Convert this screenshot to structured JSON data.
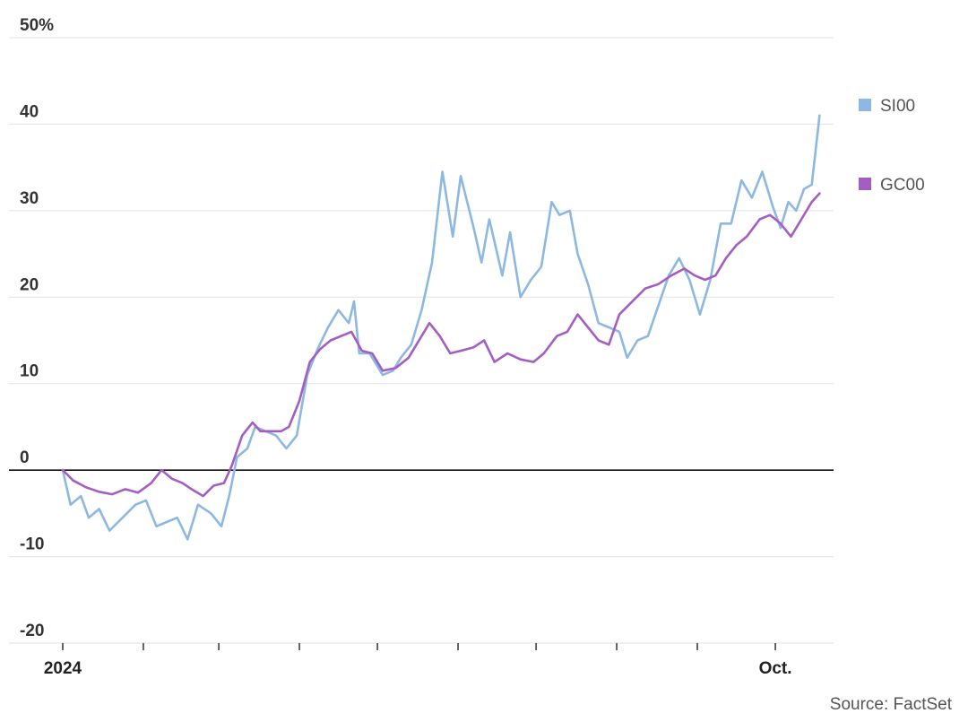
{
  "chart_data": {
    "type": "line",
    "y_unit_label": "50%",
    "ylim": [
      -20,
      50
    ],
    "yticks": [
      -20,
      -10,
      0,
      10,
      20,
      30,
      40,
      50
    ],
    "ytick_labels": [
      "-20",
      "-10",
      "0",
      "10",
      "20",
      "30",
      "40",
      "50%"
    ],
    "x_range": [
      "2024-01-01",
      "2024-11-01"
    ],
    "xtick_labels": [
      {
        "date": "2024-01-01",
        "label": "2024"
      },
      {
        "date": "2024-10-01",
        "label": "Oct."
      }
    ],
    "xtick_marks": [
      "2024-01-01",
      "2024-02-01",
      "2024-03-01",
      "2024-04-01",
      "2024-05-01",
      "2024-06-01",
      "2024-07-01",
      "2024-08-01",
      "2024-09-01",
      "2024-10-01"
    ],
    "grid": true,
    "legend_position": "right",
    "series": [
      {
        "name": "SI00",
        "color": "#8db8e2",
        "points": [
          [
            "2024-01-01",
            0
          ],
          [
            "2024-01-04",
            -4
          ],
          [
            "2024-01-08",
            -3
          ],
          [
            "2024-01-11",
            -5.5
          ],
          [
            "2024-01-15",
            -4.5
          ],
          [
            "2024-01-19",
            -7
          ],
          [
            "2024-01-24",
            -5.5
          ],
          [
            "2024-01-29",
            -4
          ],
          [
            "2024-02-02",
            -3.5
          ],
          [
            "2024-02-06",
            -6.5
          ],
          [
            "2024-02-10",
            -6
          ],
          [
            "2024-02-14",
            -5.5
          ],
          [
            "2024-02-18",
            -8
          ],
          [
            "2024-02-22",
            -4
          ],
          [
            "2024-02-27",
            -5
          ],
          [
            "2024-03-02",
            -6.5
          ],
          [
            "2024-03-05",
            -3
          ],
          [
            "2024-03-08",
            1.5
          ],
          [
            "2024-03-12",
            2.5
          ],
          [
            "2024-03-15",
            5
          ],
          [
            "2024-03-19",
            4.5
          ],
          [
            "2024-03-23",
            4
          ],
          [
            "2024-03-27",
            2.5
          ],
          [
            "2024-03-31",
            4
          ],
          [
            "2024-04-04",
            11
          ],
          [
            "2024-04-08",
            14
          ],
          [
            "2024-04-12",
            16.5
          ],
          [
            "2024-04-16",
            18.5
          ],
          [
            "2024-04-20",
            17
          ],
          [
            "2024-04-22",
            19.5
          ],
          [
            "2024-04-24",
            13.5
          ],
          [
            "2024-04-28",
            13.5
          ],
          [
            "2024-05-03",
            11
          ],
          [
            "2024-05-07",
            11.5
          ],
          [
            "2024-05-10",
            13
          ],
          [
            "2024-05-14",
            14.5
          ],
          [
            "2024-05-18",
            18.5
          ],
          [
            "2024-05-22",
            24
          ],
          [
            "2024-05-26",
            34.5
          ],
          [
            "2024-05-30",
            27
          ],
          [
            "2024-06-02",
            34
          ],
          [
            "2024-06-07",
            28
          ],
          [
            "2024-06-10",
            24
          ],
          [
            "2024-06-13",
            29
          ],
          [
            "2024-06-18",
            22.5
          ],
          [
            "2024-06-21",
            27.5
          ],
          [
            "2024-06-25",
            20
          ],
          [
            "2024-06-29",
            22
          ],
          [
            "2024-07-03",
            23.5
          ],
          [
            "2024-07-07",
            31
          ],
          [
            "2024-07-10",
            29.5
          ],
          [
            "2024-07-14",
            30
          ],
          [
            "2024-07-17",
            25
          ],
          [
            "2024-07-21",
            21.5
          ],
          [
            "2024-07-25",
            17
          ],
          [
            "2024-07-29",
            16.5
          ],
          [
            "2024-08-02",
            16
          ],
          [
            "2024-08-05",
            13
          ],
          [
            "2024-08-09",
            15
          ],
          [
            "2024-08-13",
            15.5
          ],
          [
            "2024-08-17",
            19
          ],
          [
            "2024-08-21",
            22.5
          ],
          [
            "2024-08-25",
            24.5
          ],
          [
            "2024-08-29",
            22
          ],
          [
            "2024-09-02",
            18
          ],
          [
            "2024-09-06",
            22
          ],
          [
            "2024-09-10",
            28.5
          ],
          [
            "2024-09-14",
            28.5
          ],
          [
            "2024-09-18",
            33.5
          ],
          [
            "2024-09-22",
            31.5
          ],
          [
            "2024-09-26",
            34.5
          ],
          [
            "2024-09-30",
            30.5
          ],
          [
            "2024-10-03",
            28
          ],
          [
            "2024-10-06",
            31
          ],
          [
            "2024-10-09",
            30
          ],
          [
            "2024-10-12",
            32.5
          ],
          [
            "2024-10-15",
            33
          ],
          [
            "2024-10-18",
            41
          ]
        ]
      },
      {
        "name": "GC00",
        "color": "#a45ec2",
        "points": [
          [
            "2024-01-01",
            0
          ],
          [
            "2024-01-05",
            -1.2
          ],
          [
            "2024-01-10",
            -2
          ],
          [
            "2024-01-15",
            -2.5
          ],
          [
            "2024-01-20",
            -2.8
          ],
          [
            "2024-01-25",
            -2.2
          ],
          [
            "2024-01-30",
            -2.6
          ],
          [
            "2024-02-04",
            -1.5
          ],
          [
            "2024-02-08",
            0
          ],
          [
            "2024-02-12",
            -1
          ],
          [
            "2024-02-16",
            -1.5
          ],
          [
            "2024-02-20",
            -2.3
          ],
          [
            "2024-02-24",
            -3
          ],
          [
            "2024-02-28",
            -1.8
          ],
          [
            "2024-03-03",
            -1.5
          ],
          [
            "2024-03-06",
            0.5
          ],
          [
            "2024-03-10",
            4
          ],
          [
            "2024-03-14",
            5.5
          ],
          [
            "2024-03-17",
            4.5
          ],
          [
            "2024-03-21",
            4.5
          ],
          [
            "2024-03-25",
            4.5
          ],
          [
            "2024-03-28",
            5
          ],
          [
            "2024-04-01",
            8
          ],
          [
            "2024-04-05",
            12.5
          ],
          [
            "2024-04-09",
            14
          ],
          [
            "2024-04-13",
            15
          ],
          [
            "2024-04-17",
            15.5
          ],
          [
            "2024-04-21",
            16
          ],
          [
            "2024-04-25",
            13.8
          ],
          [
            "2024-04-29",
            13.5
          ],
          [
            "2024-05-03",
            11.5
          ],
          [
            "2024-05-08",
            11.8
          ],
          [
            "2024-05-13",
            13
          ],
          [
            "2024-05-17",
            15
          ],
          [
            "2024-05-21",
            17
          ],
          [
            "2024-05-25",
            15.5
          ],
          [
            "2024-05-29",
            13.5
          ],
          [
            "2024-06-02",
            13.8
          ],
          [
            "2024-06-07",
            14.2
          ],
          [
            "2024-06-11",
            15
          ],
          [
            "2024-06-15",
            12.5
          ],
          [
            "2024-06-20",
            13.5
          ],
          [
            "2024-06-25",
            12.8
          ],
          [
            "2024-06-30",
            12.5
          ],
          [
            "2024-07-04",
            13.5
          ],
          [
            "2024-07-09",
            15.5
          ],
          [
            "2024-07-13",
            16
          ],
          [
            "2024-07-17",
            18
          ],
          [
            "2024-07-21",
            16.5
          ],
          [
            "2024-07-25",
            15
          ],
          [
            "2024-07-29",
            14.5
          ],
          [
            "2024-08-02",
            18
          ],
          [
            "2024-08-07",
            19.5
          ],
          [
            "2024-08-12",
            21
          ],
          [
            "2024-08-17",
            21.5
          ],
          [
            "2024-08-22",
            22.5
          ],
          [
            "2024-08-27",
            23.3
          ],
          [
            "2024-08-31",
            22.5
          ],
          [
            "2024-09-04",
            22
          ],
          [
            "2024-09-08",
            22.5
          ],
          [
            "2024-09-12",
            24.5
          ],
          [
            "2024-09-16",
            26
          ],
          [
            "2024-09-20",
            27
          ],
          [
            "2024-09-25",
            29
          ],
          [
            "2024-09-29",
            29.5
          ],
          [
            "2024-10-03",
            28.5
          ],
          [
            "2024-10-07",
            27
          ],
          [
            "2024-10-11",
            29
          ],
          [
            "2024-10-15",
            31
          ],
          [
            "2024-10-18",
            32
          ]
        ]
      }
    ],
    "source": "Source: FactSet"
  }
}
